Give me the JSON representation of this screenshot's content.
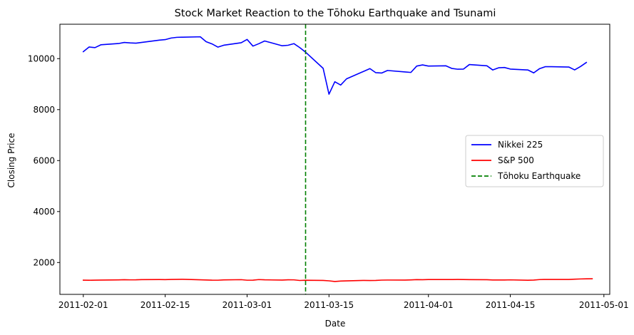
{
  "chart_data": {
    "type": "line",
    "title": "Stock Market Reaction to the Tōhoku Earthquake and Tsunami",
    "xlabel": "Date",
    "ylabel": "Closing Price",
    "xlim": [
      "2011-01-28",
      "2011-05-02"
    ],
    "ylim": [
      750,
      11350
    ],
    "x_ticks": [
      {
        "date": "2011-02-01",
        "label": "2011-02-01"
      },
      {
        "date": "2011-02-15",
        "label": "2011-02-15"
      },
      {
        "date": "2011-03-01",
        "label": "2011-03-01"
      },
      {
        "date": "2011-03-15",
        "label": "2011-03-15"
      },
      {
        "date": "2011-04-01",
        "label": "2011-04-01"
      },
      {
        "date": "2011-04-15",
        "label": "2011-04-15"
      },
      {
        "date": "2011-05-01",
        "label": "2011-05-01"
      }
    ],
    "y_ticks": [
      2000,
      4000,
      6000,
      8000,
      10000
    ],
    "grid": false,
    "legend_position": "center-right",
    "series": [
      {
        "name": "Nikkei 225",
        "color": "#0000ff",
        "style": "solid",
        "points": [
          [
            "2011-02-01",
            10274
          ],
          [
            "2011-02-02",
            10457
          ],
          [
            "2011-02-03",
            10432
          ],
          [
            "2011-02-04",
            10543
          ],
          [
            "2011-02-07",
            10592
          ],
          [
            "2011-02-08",
            10636
          ],
          [
            "2011-02-09",
            10617
          ],
          [
            "2011-02-10",
            10606
          ],
          [
            "2011-02-14",
            10725
          ],
          [
            "2011-02-15",
            10746
          ],
          [
            "2011-02-16",
            10808
          ],
          [
            "2011-02-17",
            10836
          ],
          [
            "2011-02-18",
            10842
          ],
          [
            "2011-02-21",
            10857
          ],
          [
            "2011-02-22",
            10665
          ],
          [
            "2011-02-23",
            10579
          ],
          [
            "2011-02-24",
            10452
          ],
          [
            "2011-02-25",
            10526
          ],
          [
            "2011-02-28",
            10624
          ],
          [
            "2011-03-01",
            10754
          ],
          [
            "2011-03-02",
            10492
          ],
          [
            "2011-03-03",
            10586
          ],
          [
            "2011-03-04",
            10693
          ],
          [
            "2011-03-07",
            10505
          ],
          [
            "2011-03-08",
            10525
          ],
          [
            "2011-03-09",
            10589
          ],
          [
            "2011-03-10",
            10434
          ],
          [
            "2011-03-11",
            10254
          ],
          [
            "2011-03-14",
            9620
          ],
          [
            "2011-03-15",
            8605
          ],
          [
            "2011-03-16",
            9093
          ],
          [
            "2011-03-17",
            8963
          ],
          [
            "2011-03-18",
            9207
          ],
          [
            "2011-03-22",
            9608
          ],
          [
            "2011-03-23",
            9449
          ],
          [
            "2011-03-24",
            9435
          ],
          [
            "2011-03-25",
            9536
          ],
          [
            "2011-03-28",
            9478
          ],
          [
            "2011-03-29",
            9459
          ],
          [
            "2011-03-30",
            9708
          ],
          [
            "2011-03-31",
            9755
          ],
          [
            "2011-04-01",
            9708
          ],
          [
            "2011-04-04",
            9718
          ],
          [
            "2011-04-05",
            9615
          ],
          [
            "2011-04-06",
            9585
          ],
          [
            "2011-04-07",
            9590
          ],
          [
            "2011-04-08",
            9768
          ],
          [
            "2011-04-11",
            9719
          ],
          [
            "2011-04-12",
            9555
          ],
          [
            "2011-04-13",
            9641
          ],
          [
            "2011-04-14",
            9653
          ],
          [
            "2011-04-15",
            9591
          ],
          [
            "2011-04-18",
            9556
          ],
          [
            "2011-04-19",
            9441
          ],
          [
            "2011-04-20",
            9607
          ],
          [
            "2011-04-21",
            9685
          ],
          [
            "2011-04-22",
            9683
          ],
          [
            "2011-04-25",
            9671
          ],
          [
            "2011-04-26",
            9559
          ],
          [
            "2011-04-27",
            9691
          ],
          [
            "2011-04-28",
            9849
          ]
        ]
      },
      {
        "name": "S&P 500",
        "color": "#ff0000",
        "style": "solid",
        "points": [
          [
            "2011-02-01",
            1307
          ],
          [
            "2011-02-02",
            1305
          ],
          [
            "2011-02-03",
            1307
          ],
          [
            "2011-02-04",
            1310
          ],
          [
            "2011-02-07",
            1319
          ],
          [
            "2011-02-08",
            1324
          ],
          [
            "2011-02-09",
            1320
          ],
          [
            "2011-02-10",
            1321
          ],
          [
            "2011-02-11",
            1329
          ],
          [
            "2011-02-14",
            1332
          ],
          [
            "2011-02-15",
            1328
          ],
          [
            "2011-02-16",
            1336
          ],
          [
            "2011-02-17",
            1340
          ],
          [
            "2011-02-18",
            1343
          ],
          [
            "2011-02-22",
            1315
          ],
          [
            "2011-02-23",
            1307
          ],
          [
            "2011-02-24",
            1306
          ],
          [
            "2011-02-25",
            1319
          ],
          [
            "2011-02-28",
            1327
          ],
          [
            "2011-03-01",
            1306
          ],
          [
            "2011-03-02",
            1308
          ],
          [
            "2011-03-03",
            1330
          ],
          [
            "2011-03-04",
            1321
          ],
          [
            "2011-03-07",
            1310
          ],
          [
            "2011-03-08",
            1321
          ],
          [
            "2011-03-09",
            1320
          ],
          [
            "2011-03-10",
            1295
          ],
          [
            "2011-03-11",
            1304
          ],
          [
            "2011-03-14",
            1296
          ],
          [
            "2011-03-15",
            1281
          ],
          [
            "2011-03-16",
            1256
          ],
          [
            "2011-03-17",
            1273
          ],
          [
            "2011-03-18",
            1279
          ],
          [
            "2011-03-21",
            1298
          ],
          [
            "2011-03-22",
            1294
          ],
          [
            "2011-03-23",
            1297
          ],
          [
            "2011-03-24",
            1309
          ],
          [
            "2011-03-25",
            1313
          ],
          [
            "2011-03-28",
            1310
          ],
          [
            "2011-03-29",
            1319
          ],
          [
            "2011-03-30",
            1328
          ],
          [
            "2011-03-31",
            1326
          ],
          [
            "2011-04-01",
            1332
          ],
          [
            "2011-04-04",
            1332
          ],
          [
            "2011-04-05",
            1332
          ],
          [
            "2011-04-06",
            1335
          ],
          [
            "2011-04-07",
            1333
          ],
          [
            "2011-04-08",
            1328
          ],
          [
            "2011-04-11",
            1324
          ],
          [
            "2011-04-12",
            1314
          ],
          [
            "2011-04-13",
            1314
          ],
          [
            "2011-04-14",
            1314
          ],
          [
            "2011-04-15",
            1320
          ],
          [
            "2011-04-18",
            1305
          ],
          [
            "2011-04-19",
            1312
          ],
          [
            "2011-04-20",
            1330
          ],
          [
            "2011-04-21",
            1337
          ],
          [
            "2011-04-25",
            1335
          ],
          [
            "2011-04-26",
            1347
          ],
          [
            "2011-04-27",
            1355
          ],
          [
            "2011-04-28",
            1360
          ],
          [
            "2011-04-29",
            1364
          ]
        ]
      }
    ],
    "vlines": [
      {
        "name": "Tōhoku Earthquake",
        "date": "2011-03-11",
        "color": "#008000",
        "style": "dashed"
      }
    ]
  }
}
